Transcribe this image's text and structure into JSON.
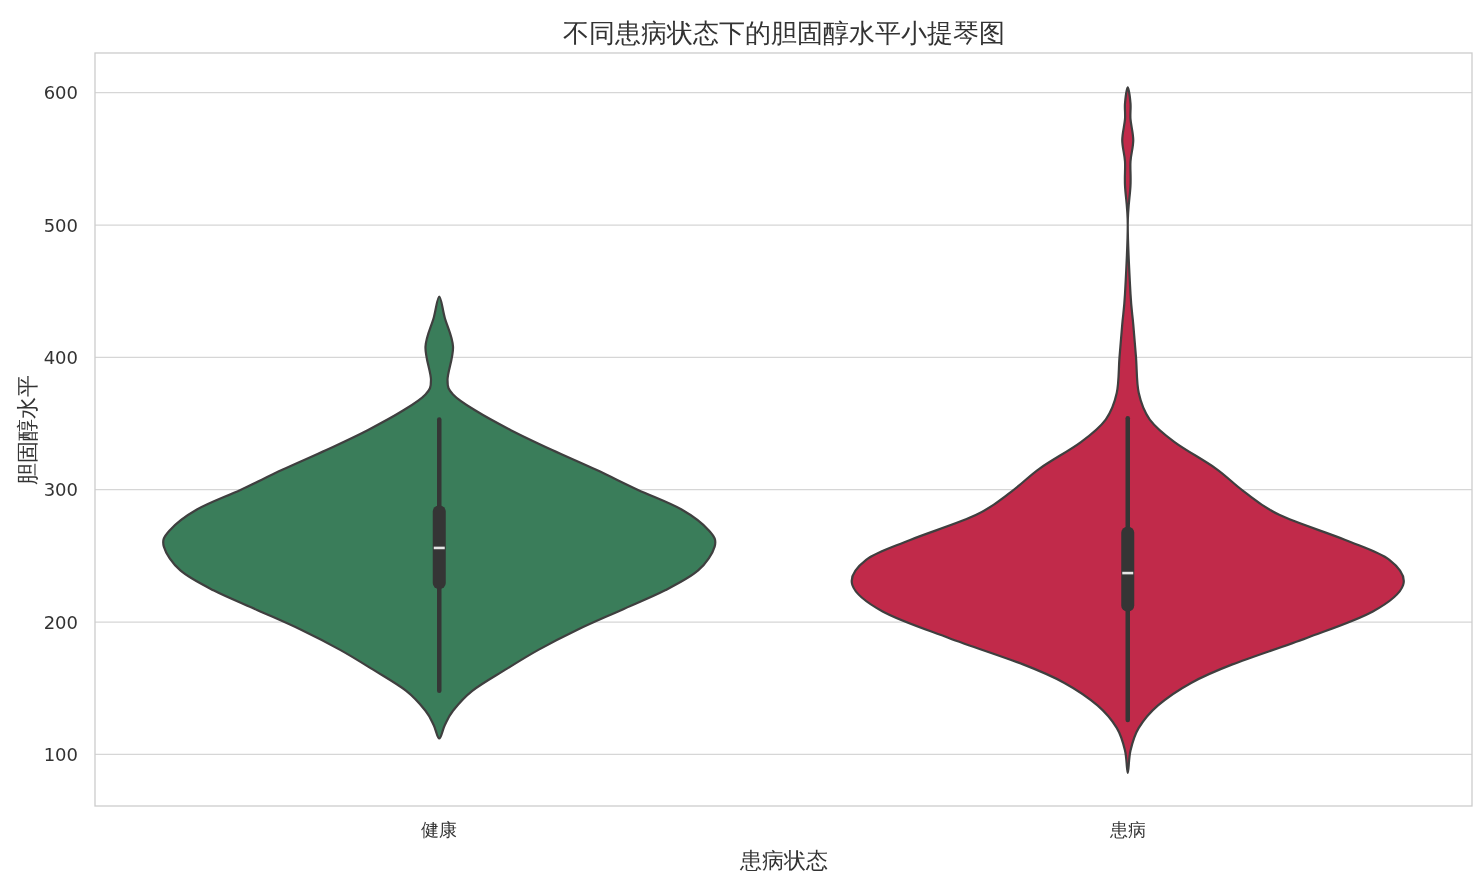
{
  "chart_data": {
    "type": "box",
    "title": "不同患病状态下的胆固醇水平小提琴图",
    "xlabel": "患病状态",
    "ylabel": "胆固醇水平",
    "categories": [
      "健康",
      "患病"
    ],
    "ylim": [
      61,
      630
    ],
    "yticks": [
      100,
      200,
      300,
      400,
      500,
      600
    ],
    "grid": "y",
    "boxes": [
      {
        "low": 148,
        "q1": 225,
        "median": 256,
        "q3": 288,
        "high": 353
      },
      {
        "low": 126,
        "q1": 208,
        "median": 237,
        "q3": 272,
        "high": 354
      }
    ]
  }
}
